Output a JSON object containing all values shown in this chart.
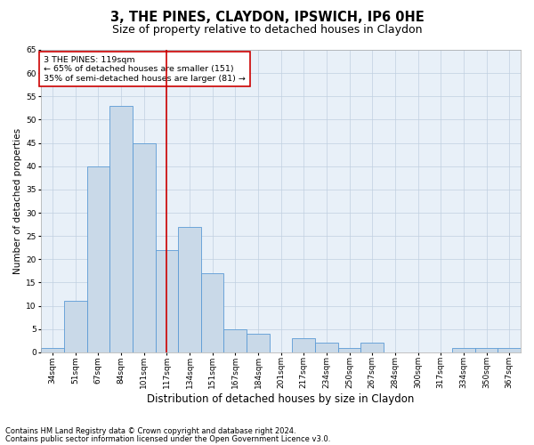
{
  "title1": "3, THE PINES, CLAYDON, IPSWICH, IP6 0HE",
  "title2": "Size of property relative to detached houses in Claydon",
  "xlabel": "Distribution of detached houses by size in Claydon",
  "ylabel": "Number of detached properties",
  "categories": [
    "34sqm",
    "51sqm",
    "67sqm",
    "84sqm",
    "101sqm",
    "117sqm",
    "134sqm",
    "151sqm",
    "167sqm",
    "184sqm",
    "201sqm",
    "217sqm",
    "234sqm",
    "250sqm",
    "267sqm",
    "284sqm",
    "300sqm",
    "317sqm",
    "334sqm",
    "350sqm",
    "367sqm"
  ],
  "values": [
    1,
    11,
    40,
    53,
    45,
    22,
    27,
    17,
    5,
    4,
    0,
    3,
    2,
    1,
    2,
    0,
    0,
    0,
    1,
    1,
    1
  ],
  "bar_color": "#c9d9e8",
  "bar_edge_color": "#5b9bd5",
  "vline_index": 5,
  "vline_color": "#cc0000",
  "annotation_title": "3 THE PINES: 119sqm",
  "annotation_line2": "← 65% of detached houses are smaller (151)",
  "annotation_line3": "35% of semi-detached houses are larger (81) →",
  "annotation_box_color": "#cc0000",
  "ylim": [
    0,
    65
  ],
  "yticks": [
    0,
    5,
    10,
    15,
    20,
    25,
    30,
    35,
    40,
    45,
    50,
    55,
    60,
    65
  ],
  "footer1": "Contains HM Land Registry data © Crown copyright and database right 2024.",
  "footer2": "Contains public sector information licensed under the Open Government Licence v3.0.",
  "bg_color": "#ffffff",
  "plot_bg_color": "#e8f0f8",
  "grid_color": "#c0cfe0",
  "title1_fontsize": 10.5,
  "title2_fontsize": 9,
  "xlabel_fontsize": 8.5,
  "ylabel_fontsize": 7.5,
  "tick_fontsize": 6.5,
  "ann_fontsize": 6.8,
  "footer_fontsize": 6.0
}
